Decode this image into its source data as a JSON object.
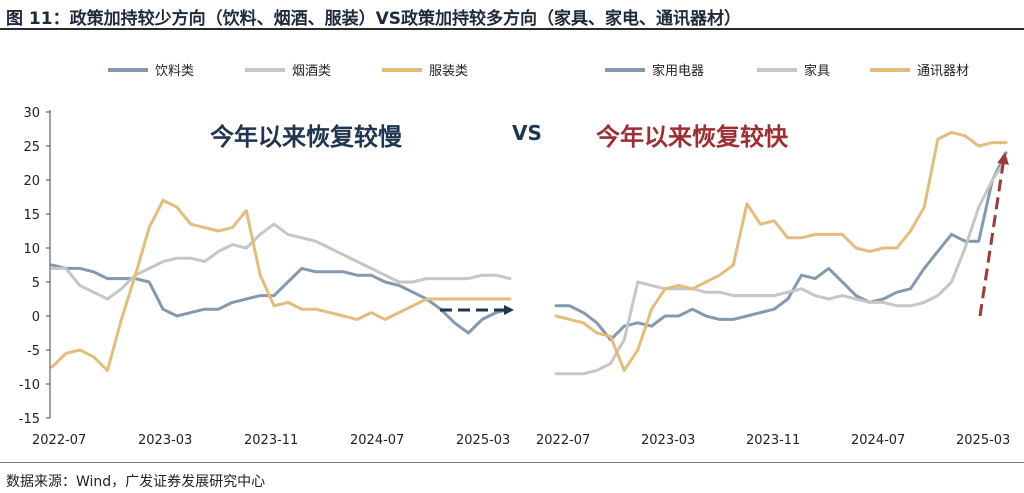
{
  "title": "图 11：政策加持较少方向（饮料、烟酒、服装）VS政策加持较多方向（家具、家电、通讯器材）",
  "source": "数据来源：Wind，广发证券发展研究中心",
  "colors": {
    "blue_gray": "#8499ad",
    "light_gray": "#c6c6c6",
    "gold": "#e3bd7d",
    "dark_navy": "#1f3550",
    "dark_red": "#9c3a3a"
  },
  "chart_data": [
    {
      "type": "line",
      "annotation": "今年以来恢复较慢",
      "separator": "VS",
      "ylim": [
        -15,
        30
      ],
      "yticks": [
        "30",
        "25",
        "20",
        "15",
        "10",
        "5",
        "0",
        "-5",
        "-10",
        "-15"
      ],
      "xticks": [
        "2022-07",
        "2023-03",
        "2023-11",
        "2024-07",
        "2025-03"
      ],
      "grid": false,
      "legend_position": "top",
      "x": [
        "2022-07",
        "2022-08",
        "2022-09",
        "2022-10",
        "2022-11",
        "2022-12",
        "2023-01",
        "2023-02",
        "2023-03",
        "2023-04",
        "2023-05",
        "2023-06",
        "2023-07",
        "2023-08",
        "2023-09",
        "2023-10",
        "2023-11",
        "2023-12",
        "2024-01",
        "2024-02",
        "2024-03",
        "2024-04",
        "2024-05",
        "2024-06",
        "2024-07",
        "2024-08",
        "2024-09",
        "2024-10",
        "2024-11",
        "2024-12",
        "2025-01",
        "2025-02",
        "2025-03",
        "2025-04"
      ],
      "series": [
        {
          "name": "饮料类",
          "color": "#8499ad",
          "values": [
            7.5,
            7.0,
            7.0,
            6.5,
            5.5,
            5.5,
            5.5,
            5.0,
            1.0,
            0.0,
            0.5,
            1.0,
            1.0,
            2.0,
            2.5,
            3.0,
            3.0,
            5.0,
            7.0,
            6.5,
            6.5,
            6.5,
            6.0,
            6.0,
            5.0,
            4.5,
            3.5,
            2.5,
            1.0,
            -1.0,
            -2.5,
            -0.5,
            0.5,
            1.0
          ]
        },
        {
          "name": "烟酒类",
          "color": "#c6c6c6",
          "values": [
            7.0,
            7.0,
            4.5,
            3.5,
            2.5,
            4.0,
            6.0,
            7.0,
            8.0,
            8.5,
            8.5,
            8.0,
            9.5,
            10.5,
            10.0,
            12.0,
            13.5,
            12.0,
            11.5,
            11.0,
            10.0,
            9.0,
            8.0,
            7.0,
            6.0,
            5.0,
            5.0,
            5.5,
            5.5,
            5.5,
            5.5,
            6.0,
            6.0,
            5.5
          ]
        },
        {
          "name": "服装类",
          "color": "#e3bd7d",
          "values": [
            -7.5,
            -5.5,
            -5.0,
            -6.0,
            -8.0,
            -0.5,
            6.0,
            13.0,
            17.0,
            16.0,
            13.5,
            13.0,
            12.5,
            13.0,
            15.5,
            6.0,
            1.5,
            2.0,
            1.0,
            1.0,
            0.5,
            0.0,
            -0.5,
            0.5,
            -0.5,
            0.5,
            1.5,
            2.5,
            2.5,
            2.5,
            2.5,
            2.5,
            2.5,
            2.5
          ]
        }
      ],
      "arrow": "→"
    },
    {
      "type": "line",
      "annotation": "今年以来恢复较快",
      "xticks": [
        "2022-07",
        "2023-03",
        "2023-11",
        "2024-07",
        "2025-03"
      ],
      "ylim": [
        -15,
        30
      ],
      "grid": false,
      "legend_position": "top",
      "x": [
        "2022-07",
        "2022-08",
        "2022-09",
        "2022-10",
        "2022-11",
        "2022-12",
        "2023-01",
        "2023-02",
        "2023-03",
        "2023-04",
        "2023-05",
        "2023-06",
        "2023-07",
        "2023-08",
        "2023-09",
        "2023-10",
        "2023-11",
        "2023-12",
        "2024-01",
        "2024-02",
        "2024-03",
        "2024-04",
        "2024-05",
        "2024-06",
        "2024-07",
        "2024-08",
        "2024-09",
        "2024-10",
        "2024-11",
        "2024-12",
        "2025-01",
        "2025-02",
        "2025-03",
        "2025-04"
      ],
      "series": [
        {
          "name": "家用电器",
          "color": "#8499ad",
          "values": [
            1.5,
            1.5,
            0.5,
            -1.0,
            -3.5,
            -1.5,
            -1.0,
            -1.5,
            0.0,
            0.0,
            1.0,
            0.0,
            -0.5,
            -0.5,
            0.0,
            0.5,
            1.0,
            2.5,
            6.0,
            5.5,
            7.0,
            5.0,
            3.0,
            2.0,
            2.5,
            3.5,
            4.0,
            7.0,
            9.5,
            12.0,
            11.0,
            11.0,
            20.0,
            24.0
          ]
        },
        {
          "name": "家具",
          "color": "#c6c6c6",
          "values": [
            -8.5,
            -8.5,
            -8.5,
            -8.0,
            -7.0,
            -3.5,
            5.0,
            4.5,
            4.0,
            4.0,
            4.0,
            3.5,
            3.5,
            3.0,
            3.0,
            3.0,
            3.0,
            3.5,
            4.0,
            3.0,
            2.5,
            3.0,
            2.5,
            2.0,
            2.0,
            1.5,
            1.5,
            2.0,
            3.0,
            5.0,
            10.0,
            16.0,
            20.0,
            23.0
          ]
        },
        {
          "name": "通讯器材",
          "color": "#e3bd7d",
          "values": [
            0.0,
            -0.5,
            -1.0,
            -2.5,
            -3.0,
            -8.0,
            -5.0,
            1.0,
            4.0,
            4.5,
            4.0,
            5.0,
            6.0,
            7.5,
            16.5,
            13.5,
            14.0,
            11.5,
            11.5,
            12.0,
            12.0,
            12.0,
            10.0,
            9.5,
            10.0,
            10.0,
            12.5,
            16.0,
            26.0,
            27.0,
            26.5,
            25.0,
            25.5,
            25.5
          ]
        }
      ],
      "arrow": "↗"
    }
  ]
}
